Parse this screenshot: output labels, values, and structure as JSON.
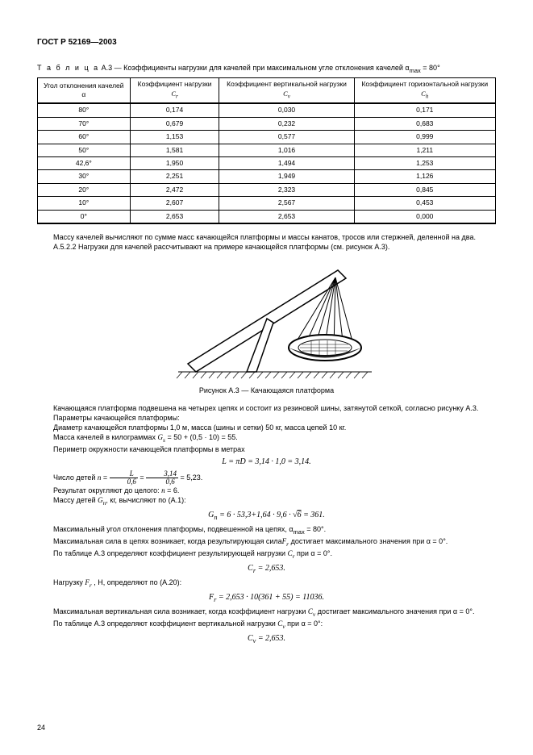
{
  "header": "ГОСТ Р 52169—2003",
  "table_caption_prefix": "Т а б л и ц а",
  "table_caption": "А.3 — Коэффициенты нагрузки для качелей при максимальном угле отклонения качелей α",
  "table_caption_sub": "max",
  "table_caption_suffix": " = 80°",
  "table": {
    "columns": [
      "Угол отклонения качелей α",
      "Коэффициент нагрузки C_r",
      "Коэффициент вертикальной нагрузки C_v",
      "Коэффициент горизонтальной нагрузки C_h"
    ],
    "rows": [
      [
        "80°",
        "0,174",
        "0,030",
        "0,171"
      ],
      [
        "70°",
        "0,679",
        "0,232",
        "0,683"
      ],
      [
        "60°",
        "1,153",
        "0,577",
        "0,999"
      ],
      [
        "50°",
        "1,581",
        "1,016",
        "1,211"
      ],
      [
        "42,6°",
        "1,950",
        "1,494",
        "1,253"
      ],
      [
        "30°",
        "2,251",
        "1,949",
        "1,126"
      ],
      [
        "20°",
        "2,472",
        "2,323",
        "0,845"
      ],
      [
        "10°",
        "2,607",
        "2,567",
        "0,453"
      ],
      [
        "0°",
        "2,653",
        "2,653",
        "0,000"
      ]
    ]
  },
  "p1": "Массу качелей вычисляют по сумме масс качающейся платформы и массы канатов, тросов или стержней, деленной на два.",
  "p2": "А.5.2.2  Нагрузки для качелей рассчитывают на примере качающейся платформы (см. рисунок А.3).",
  "fig_caption": "Рисунок А.3 — Качающаяся платформа",
  "p3": "Качающаяся платформа подвешена на четырех цепях и состоит из резиновой шины, затянутой сеткой, согласно рисунку А.3.",
  "p4": "Параметры качающейся платформы:",
  "p5": "Диаметр качающейся платформы 1,0 м, масса (шины и сетки) 50 кг, масса цепей 10 кг.",
  "p6a": "Масса качелей в килограммах ",
  "p6b": " = 50 + (0,5 · 10) = 55.",
  "p7": "Периметр окружности качающейся платформы в метрах",
  "f1": "L = πD = 3,14 · 1,0 = 3,14.",
  "p8a": "Число детей ",
  "p8b": " = 5,23.",
  "p9a": "Результат округляют до целого: ",
  "p9b": " = 6.",
  "p10a": "Массу детей ",
  "p10b": ", кг, вычисляют по (А.1):",
  "f2a": "G_n",
  "f2b": " = 6 · 53,3+1,64 · 9,6 · √6 = 361.",
  "p11": "Максимальный угол отклонения платформы, подвешенной на цепях, α",
  "p11_sub": "max",
  "p11_suffix": " = 80°.",
  "p12a": "Максимальная сила в цепях возникает, когда результирующая сила ",
  "p12b": " достигает максимального значения при α = 0°.",
  "p13a": "По таблице А.3 определяют коэффициент результирующей нагрузки ",
  "p13b": " при α = 0°.",
  "f3": "C_r = 2,653.",
  "p14a": "Нагрузку ",
  "p14b": " , Н, определяют по (А.20):",
  "f4": "F_r = 2,653 · 10(361 + 55) = 11036.",
  "p15a": "Максимальная вертикальная сила возникает, когда коэффициент нагрузки ",
  "p15b": " достигает максимального значения при α = 0°.",
  "p16a": "По таблице А.3 определяют коэффициент вертикальной нагрузки ",
  "p16b": " при α = 0°:",
  "f5": "C_v = 2,653.",
  "page_num": "24",
  "sym": {
    "Gs": "G_s",
    "n": "n",
    "Gn": "G_n",
    "Fr": "F_r",
    "Cr": "C_r",
    "Cv": "C_v",
    "L": "L",
    "frac_L": "L",
    "frac_06": "0,6",
    "frac_314": "3,14"
  }
}
